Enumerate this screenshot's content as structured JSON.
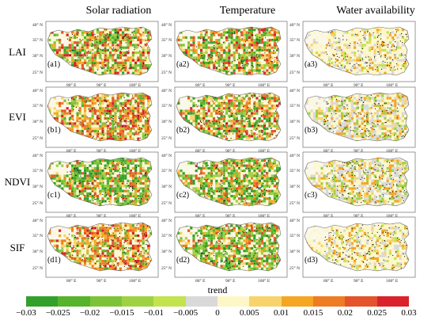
{
  "columns": [
    "Solar radiation",
    "Temperature",
    "Water availability"
  ],
  "rows": [
    "LAI",
    "EVI",
    "NDVI",
    "SIF"
  ],
  "panel_labels": [
    [
      "(a1)",
      "(a2)",
      "(a3)"
    ],
    [
      "(b1)",
      "(b2)",
      "(b3)"
    ],
    [
      "(c1)",
      "(c2)",
      "(c3)"
    ],
    [
      "(d1)",
      "(d2)",
      "(d3)"
    ]
  ],
  "lat_ticks": [
    "40° N",
    "35° N",
    "30° N",
    "25° N"
  ],
  "lon_ticks": [
    "80° E",
    "90° E",
    "100° E"
  ],
  "colorbar": {
    "title": "trend",
    "ticks": [
      "−0.03",
      "−0.025",
      "−0.02",
      "−0.015",
      "−0.01",
      "−0.005",
      "0",
      "0.005",
      "0.01",
      "0.015",
      "0.02",
      "0.025",
      "0.03"
    ],
    "colors": [
      "#33a02c",
      "#55b32c",
      "#7cc33a",
      "#9ed243",
      "#c3e34d",
      "#d9d9d9",
      "#fdf7c8",
      "#f8d36b",
      "#f5a623",
      "#ee7c22",
      "#e4532b",
      "#d9222b"
    ]
  },
  "panel_patterns": [
    [
      "green_mix",
      "green_mix",
      "pale_mix"
    ],
    [
      "warm_mix",
      "green_mix",
      "gray_mix"
    ],
    [
      "green_dom",
      "green_dom",
      "gray_mix"
    ],
    [
      "warm_mix",
      "green_dom",
      "pale_mix"
    ]
  ]
}
